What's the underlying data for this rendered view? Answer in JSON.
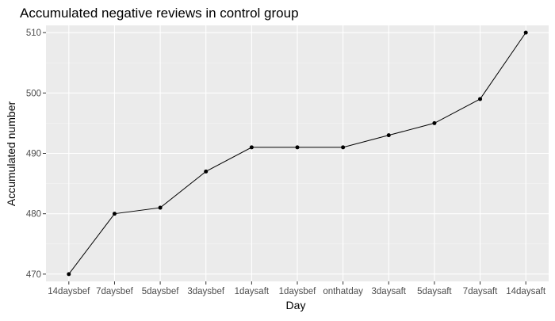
{
  "chart_data": {
    "type": "line",
    "title": "Accumulated negative reviews in control group",
    "xlabel": "Day",
    "ylabel": "Accumulated number",
    "categories": [
      "14daysbef",
      "7daysbef",
      "5daysbef",
      "3daysbef",
      "1daysaft",
      "1daysbef",
      "onthatday",
      "3daysaft",
      "5daysaft",
      "7daysaft",
      "14daysaft"
    ],
    "series": [
      {
        "values": [
          470,
          480,
          481,
          487,
          491,
          491,
          491,
          493,
          495,
          499,
          510
        ]
      }
    ],
    "ylim": [
      468.8,
      511.2
    ],
    "yticks": [
      470,
      480,
      490,
      500,
      510
    ],
    "grid": true,
    "legend": "none",
    "colors": {
      "panel_background": "#ebebeb",
      "grid_major": "#ffffff",
      "grid_minor": "#f5f5f5",
      "line": "#000000",
      "point": "#000000",
      "tick_text": "#4d4d4d",
      "axis_title": "#000000",
      "tick_mark": "#333333"
    }
  }
}
